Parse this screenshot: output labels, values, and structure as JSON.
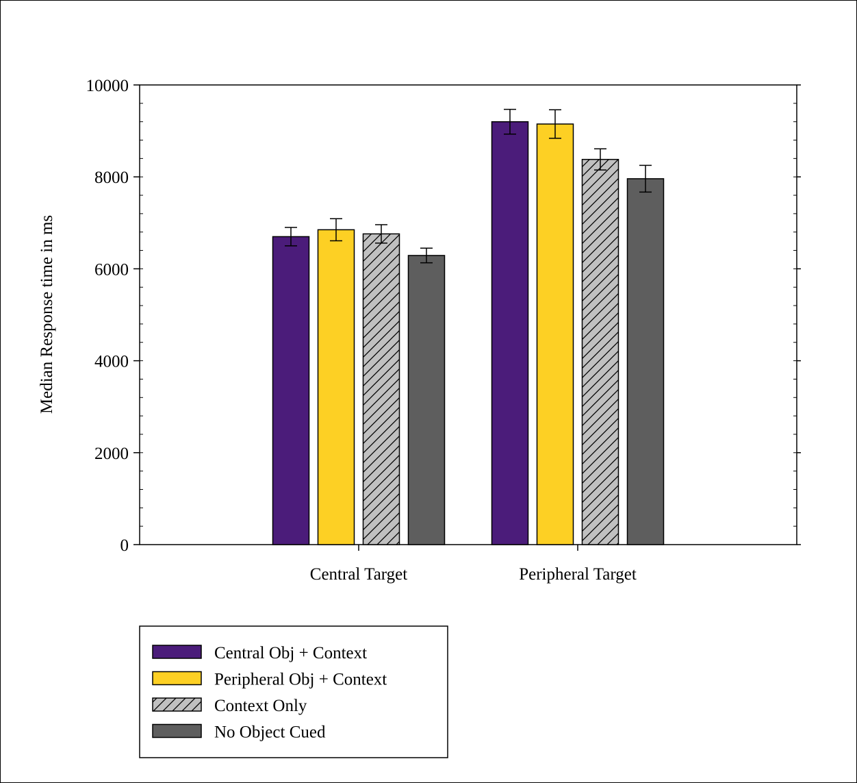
{
  "chart_data": {
    "type": "bar",
    "title": "",
    "xlabel": "",
    "ylabel": "Median Response time in ms",
    "ylim": [
      0,
      10000
    ],
    "yticks": [
      0,
      2000,
      4000,
      6000,
      8000,
      10000
    ],
    "categories": [
      "Central Target",
      "Peripheral Target"
    ],
    "grid": false,
    "error_bars": true,
    "legend_position": "bottom-left",
    "series": [
      {
        "name": "Central Obj + Context",
        "color": "#4b1c7a",
        "pattern": "solid",
        "values": [
          6700,
          9200
        ],
        "errors": [
          200,
          270
        ]
      },
      {
        "name": "Peripheral Obj + Context",
        "color": "#fdd024",
        "pattern": "solid",
        "values": [
          6850,
          9150
        ],
        "errors": [
          240,
          310
        ]
      },
      {
        "name": "Context Only",
        "color": "#c0c0c0",
        "pattern": "hatch",
        "values": [
          6760,
          8380
        ],
        "errors": [
          200,
          230
        ]
      },
      {
        "name": "No Object Cued",
        "color": "#5e5e5e",
        "pattern": "solid",
        "values": [
          6290,
          7960
        ],
        "errors": [
          160,
          290
        ]
      }
    ]
  }
}
